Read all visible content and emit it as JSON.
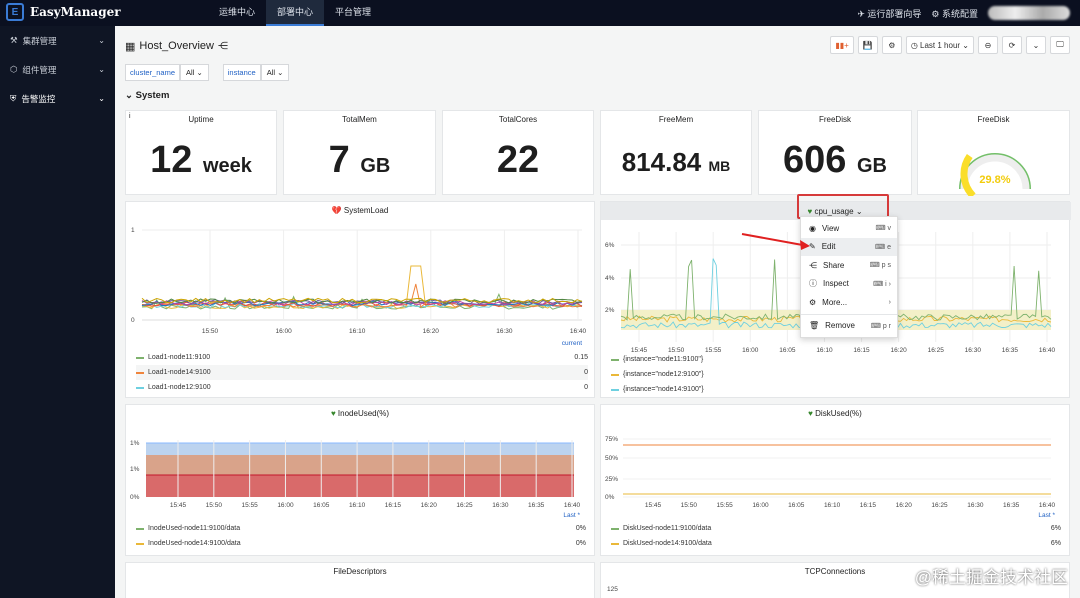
{
  "app": {
    "name": "EasyManager",
    "logo_letter": "E"
  },
  "nav": [
    {
      "label": "运维中心"
    },
    {
      "label": "部署中心"
    },
    {
      "label": "平台管理"
    }
  ],
  "top_right": {
    "deploy_wizard": "运行部署向导",
    "settings": "系统配置"
  },
  "sidebar": [
    {
      "label": "集群管理"
    },
    {
      "label": "组件管理"
    },
    {
      "label": "告警监控"
    }
  ],
  "dashboard": {
    "title": "Host_Overview",
    "time_range": "Last 1 hour",
    "row_title": "System"
  },
  "variables": [
    {
      "name": "cluster_name",
      "value": "All"
    },
    {
      "name": "instance",
      "value": "All"
    }
  ],
  "stats": [
    {
      "title": "Uptime",
      "value": "12",
      "unit": "week"
    },
    {
      "title": "TotalMem",
      "value": "7",
      "unit": "GB"
    },
    {
      "title": "TotalCores",
      "value": "22",
      "unit": ""
    },
    {
      "title": "FreeMem",
      "value": "814.84",
      "unit": "MB"
    },
    {
      "title": "FreeDisk",
      "value": "606",
      "unit": "GB"
    },
    {
      "title": "FreeDisk",
      "value": "29.8%",
      "gauge_fraction": 0.298
    }
  ],
  "systemload": {
    "title": "SystemLoad",
    "yticks": [
      "1",
      "0"
    ],
    "xticks": [
      "15:50",
      "16:00",
      "16:10",
      "16:20",
      "16:30",
      "16:40"
    ],
    "current_label": "current",
    "legend": [
      {
        "name": "Load1-node11:9100",
        "value": "0.15",
        "color": "#7eb26d"
      },
      {
        "name": "Load1-node14:9100",
        "value": "0",
        "color": "#eab839"
      },
      {
        "name": "Load1-node12:9100",
        "value": "0",
        "color": "#6ed0e0"
      }
    ]
  },
  "cpu": {
    "title": "cpu_usage",
    "yticks": [
      "6%",
      "4%",
      "2%"
    ],
    "xticks": [
      "15:45",
      "15:50",
      "15:55",
      "16:00",
      "16:05",
      "16:10",
      "16:15",
      "16:20",
      "16:25",
      "16:30",
      "16:35",
      "16:40"
    ],
    "legend": [
      {
        "name": "{instance=\"node11:9100\"}",
        "color": "#7eb26d"
      },
      {
        "name": "{instance=\"node12:9100\"}",
        "color": "#eab839"
      },
      {
        "name": "{instance=\"node14:9100\"}",
        "color": "#6ed0e0"
      }
    ]
  },
  "menu": [
    {
      "label": "View",
      "key": "v",
      "icon": "◉"
    },
    {
      "label": "Edit",
      "key": "e",
      "icon": "✎"
    },
    {
      "label": "Share",
      "key": "p s",
      "icon": "⋲"
    },
    {
      "label": "Inspect",
      "key": "i",
      "icon": "ⓘ"
    },
    {
      "label": "More...",
      "key": "",
      "icon": "⚙"
    },
    {
      "label": "Remove",
      "key": "p r",
      "icon": "🗑"
    }
  ],
  "inode": {
    "title": "InodeUsed(%)",
    "yticks": [
      "1%",
      "1%",
      "0%"
    ],
    "xticks": [
      "15:45",
      "15:50",
      "15:55",
      "16:00",
      "16:05",
      "16:10",
      "16:15",
      "16:20",
      "16:25",
      "16:30",
      "16:35",
      "16:40"
    ],
    "last_label": "Last *",
    "legend": [
      {
        "name": "InodeUsed-node11:9100/data",
        "value": "0%",
        "color": "#7eb26d"
      },
      {
        "name": "InodeUsed-node14:9100/data",
        "value": "0%",
        "color": "#eab839"
      }
    ]
  },
  "disk": {
    "title": "DiskUsed(%)",
    "yticks": [
      "75%",
      "50%",
      "25%",
      "0%"
    ],
    "xticks": [
      "15:45",
      "15:50",
      "15:55",
      "16:00",
      "16:05",
      "16:10",
      "16:15",
      "16:20",
      "16:25",
      "16:30",
      "16:35",
      "16:40"
    ],
    "last_label": "Last *",
    "legend": [
      {
        "name": "DiskUsed-node11:9100/data",
        "value": "6%",
        "color": "#7eb26d"
      },
      {
        "name": "DiskUsed-node14:9100/data",
        "value": "6%",
        "color": "#eab839"
      }
    ]
  },
  "bottom": {
    "fd_title": "FileDescriptors",
    "tcp_title": "TCPConnections",
    "tcp_ytick": "125"
  },
  "watermark": "@稀土掘金技术社区"
}
